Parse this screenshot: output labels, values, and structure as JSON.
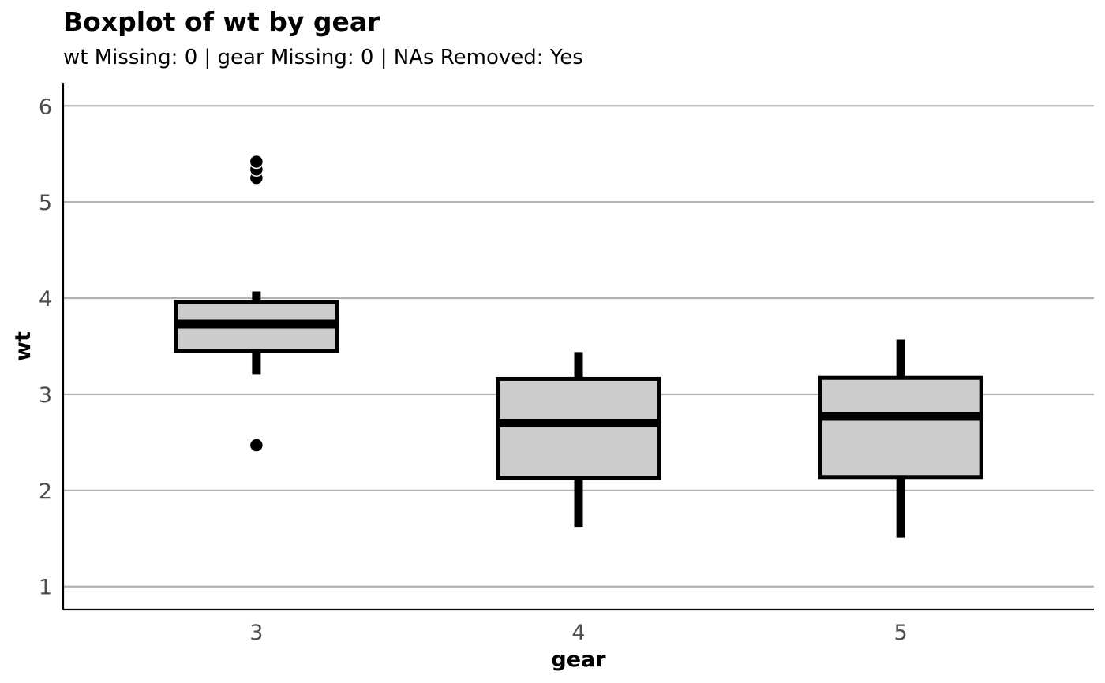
{
  "title": "Boxplot of wt by gear",
  "subtitle": "wt Missing: 0 | gear Missing: 0 | NAs Removed: Yes",
  "chart_data": {
    "type": "boxplot",
    "title": "Boxplot of wt by gear",
    "subtitle": "wt Missing: 0 | gear Missing: 0 | NAs Removed: Yes",
    "xlabel": "gear",
    "ylabel": "wt",
    "categories": [
      "3",
      "4",
      "5"
    ],
    "ylim": [
      0.76,
      6.24
    ],
    "yticks": [
      1,
      2,
      3,
      4,
      5,
      6
    ],
    "grid": "horizontal major",
    "legend": "none",
    "boxes": [
      {
        "category": "3",
        "whisker_low": 3.21,
        "q1": 3.45,
        "median": 3.73,
        "q3": 3.96,
        "whisker_high": 4.07,
        "outliers": [
          2.47,
          5.25,
          5.34,
          5.42
        ]
      },
      {
        "category": "4",
        "whisker_low": 1.62,
        "q1": 2.13,
        "median": 2.7,
        "q3": 3.16,
        "whisker_high": 3.44,
        "outliers": []
      },
      {
        "category": "5",
        "whisker_low": 1.51,
        "q1": 2.14,
        "median": 2.77,
        "q3": 3.17,
        "whisker_high": 3.57,
        "outliers": []
      }
    ],
    "colors": {
      "box_fill": "#cccccc",
      "box_stroke": "#000000",
      "grid": "#b3b3b3",
      "tick_text": "#4d4d4d",
      "outlier": "#000000"
    }
  }
}
